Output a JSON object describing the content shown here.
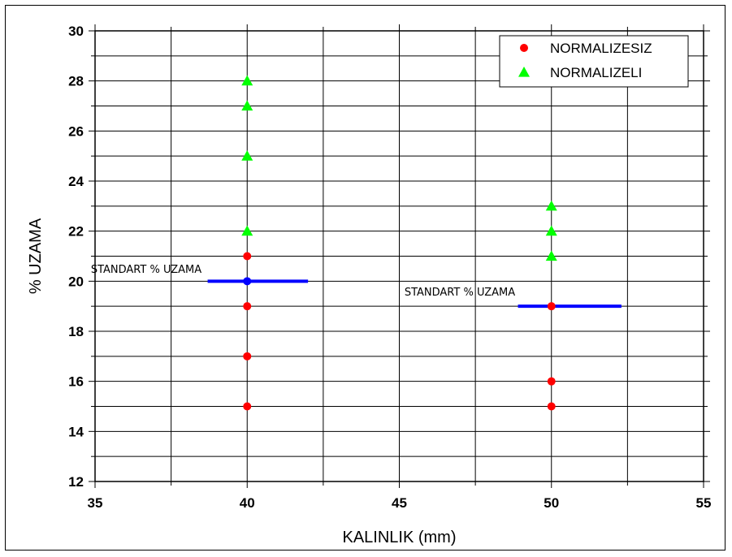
{
  "chart_data": {
    "type": "scatter",
    "title": "",
    "xlabel": "KALINLIK (mm)",
    "ylabel": "% UZAMA",
    "xlim": [
      35,
      55
    ],
    "ylim": [
      12,
      30
    ],
    "xticks": [
      35,
      40,
      45,
      50,
      55
    ],
    "yticks": [
      12,
      14,
      16,
      18,
      20,
      22,
      24,
      26,
      28,
      30
    ],
    "grid": true,
    "legend_position": "top-right",
    "series": [
      {
        "name": "NORMALIZESIZ",
        "marker": "circle",
        "color": "#ff0000",
        "x": [
          40,
          40,
          40,
          40,
          50,
          50,
          50
        ],
        "y": [
          15,
          17,
          19,
          21,
          15,
          16,
          19
        ]
      },
      {
        "name": "NORMALIZELI",
        "marker": "triangle",
        "color": "#00ff00",
        "x": [
          40,
          40,
          40,
          40,
          50,
          50,
          50
        ],
        "y": [
          22,
          25,
          27,
          28,
          21,
          22,
          23
        ]
      }
    ],
    "reference_lines": [
      {
        "label": "STANDART % UZAMA",
        "x_start": 38.7,
        "x_end": 42.0,
        "y": 20,
        "color": "#0000ff",
        "marker_x": 40
      },
      {
        "label": "STANDART % UZAMA",
        "x_start": 48.9,
        "x_end": 52.3,
        "y": 19,
        "color": "#0000ff",
        "marker_x": 50
      }
    ]
  }
}
